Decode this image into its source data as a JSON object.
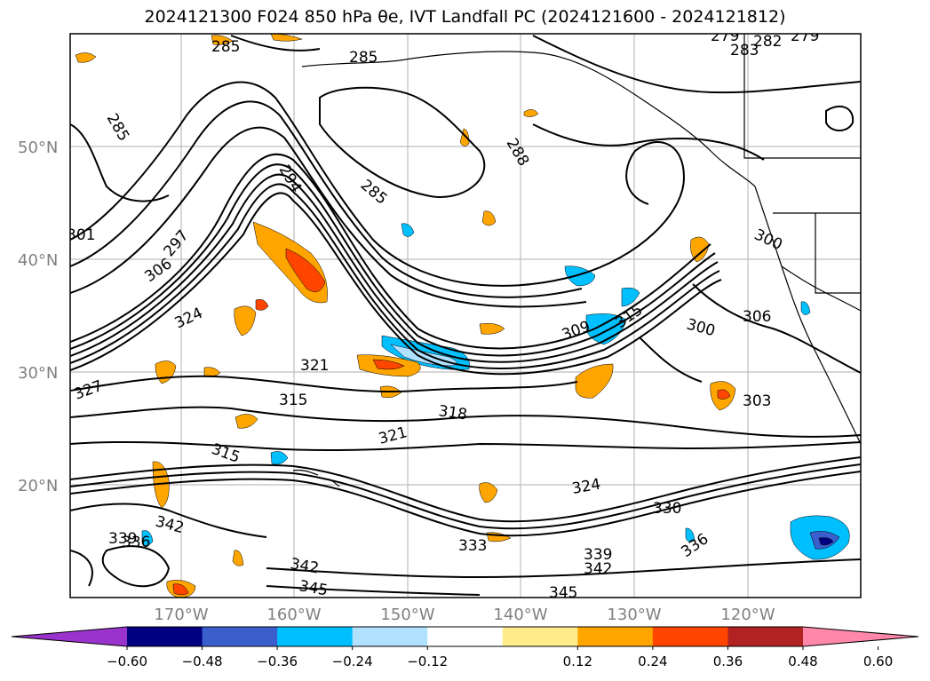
{
  "title": "2024121300 F024 850 hPa θe, IVT Landfall PC (2024121600 - 2024121812)",
  "lat_labels": [
    "50°N",
    "40°N",
    "30°N",
    "20°N"
  ],
  "lon_labels": [
    "170°W",
    "160°W",
    "150°W",
    "140°W",
    "130°W",
    "120°W"
  ],
  "contour_labels": [
    "285",
    "285",
    "285",
    "285",
    "288",
    "283",
    "282",
    "279",
    "279",
    "294",
    "297",
    "306",
    "324",
    "327",
    "321",
    "315",
    "318",
    "321",
    "315",
    "301",
    "309",
    "315",
    "300",
    "300",
    "306",
    "303",
    "324",
    "330",
    "336",
    "333",
    "339",
    "342",
    "339",
    "336",
    "342",
    "342",
    "345",
    "345"
  ],
  "colorbar": {
    "ticks": [
      "−0.60",
      "−0.48",
      "−0.36",
      "−0.24",
      "−0.12",
      "0.12",
      "0.24",
      "0.36",
      "0.48",
      "0.60"
    ],
    "colors": [
      "#9933cc",
      "#000080",
      "#3a5fcd",
      "#00bfff",
      "#b0e2ff",
      "#ffffff",
      "#ffec8b",
      "#ffa500",
      "#ff4500",
      "#b22222",
      "#ff88aa"
    ]
  }
}
